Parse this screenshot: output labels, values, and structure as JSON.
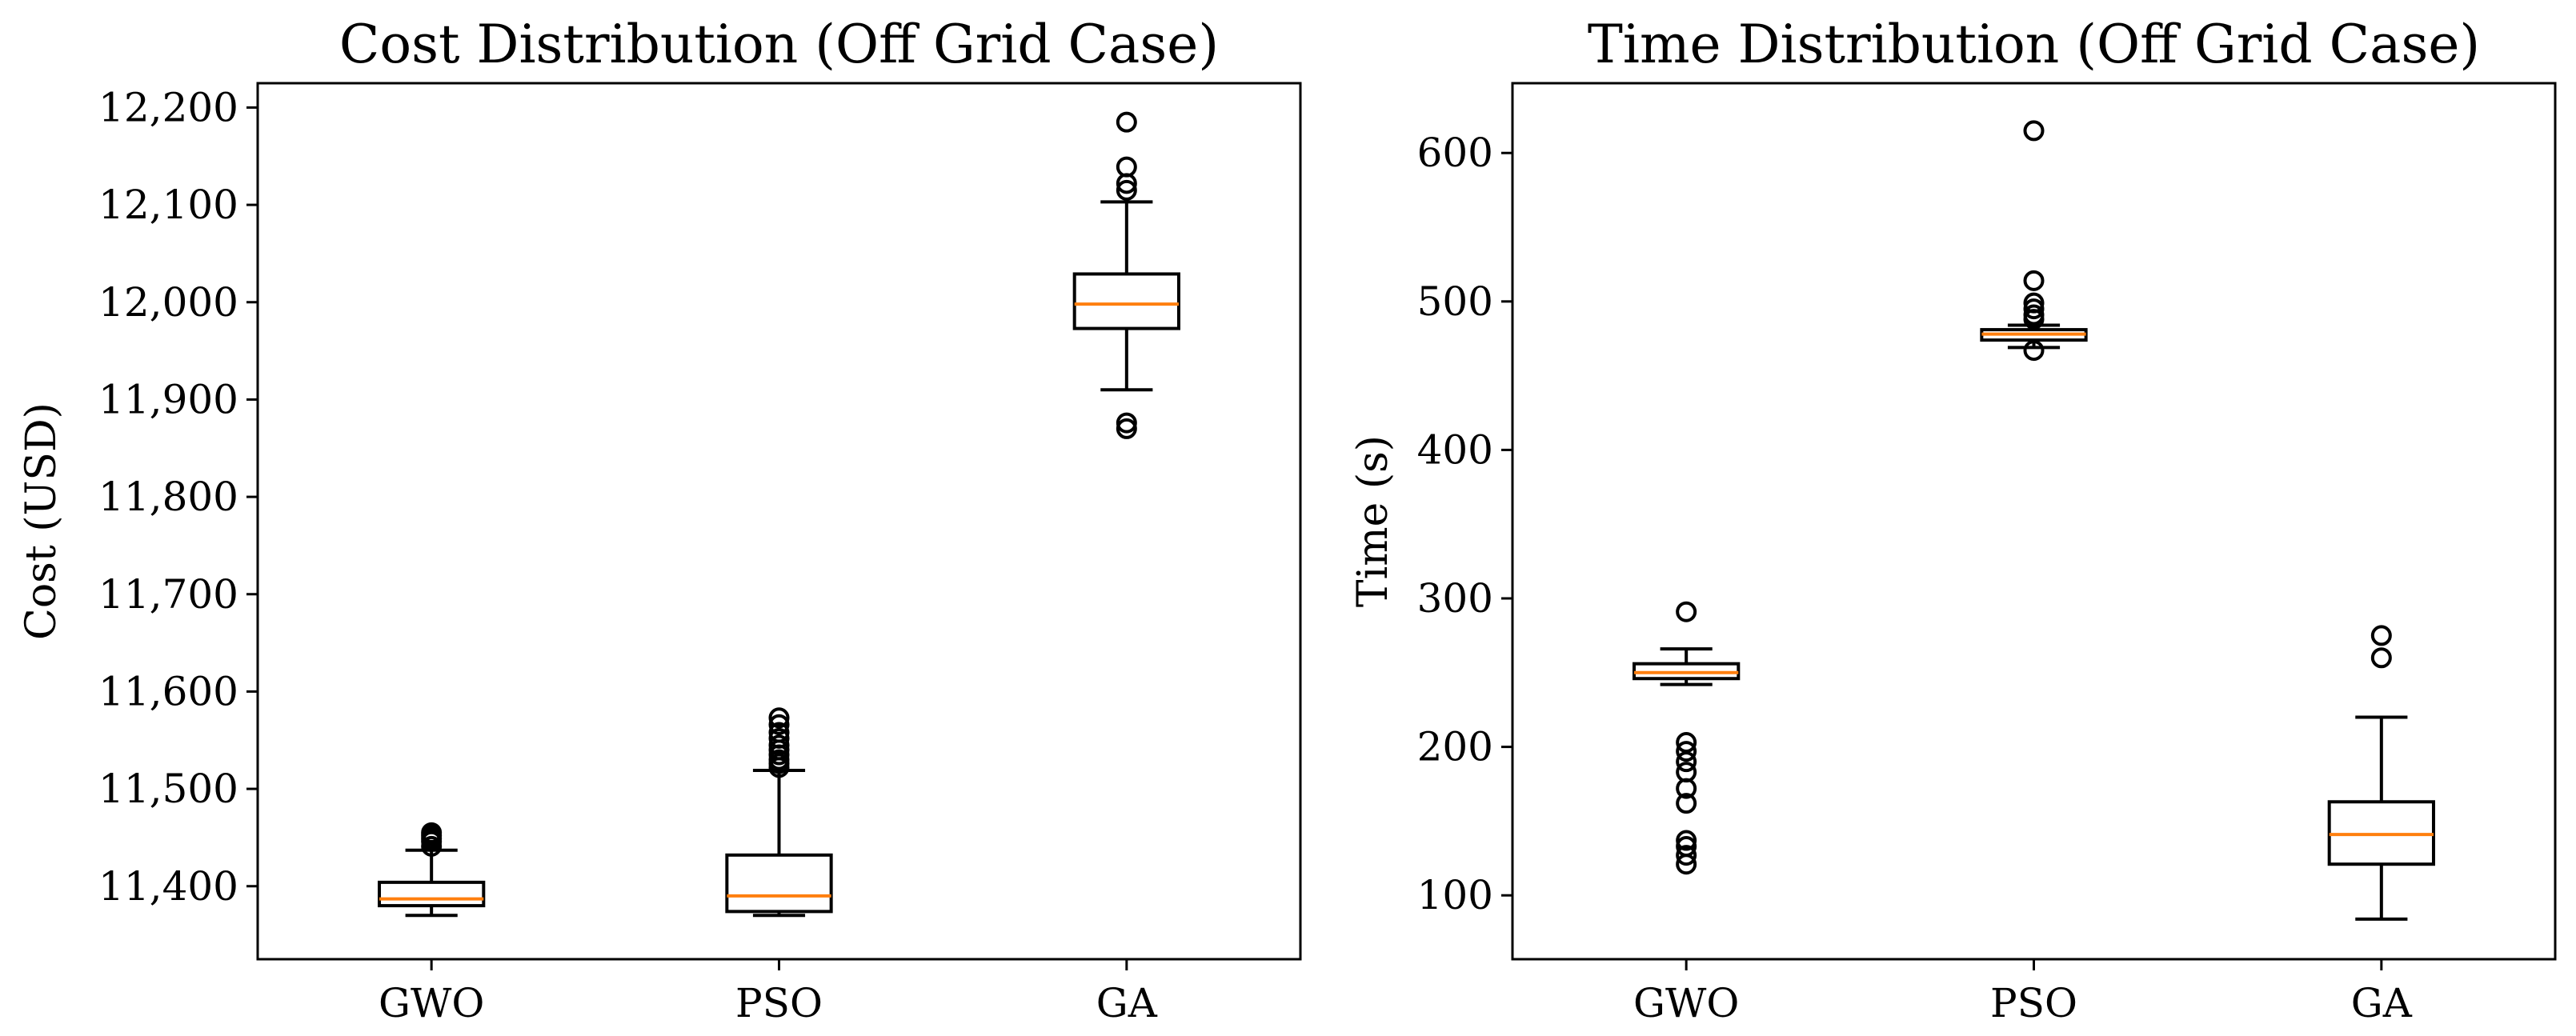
{
  "chart_data": [
    {
      "type": "boxplot",
      "title": "Cost Distribution (Off Grid Case)",
      "xlabel": "",
      "ylabel": "Cost (USD)",
      "ylim": [
        11325,
        12225
      ],
      "yticks": [
        11400,
        11500,
        11600,
        11700,
        11800,
        11900,
        12000,
        12100,
        12200
      ],
      "ytick_labels": [
        "11,400",
        "11,500",
        "11,600",
        "11,700",
        "11,800",
        "11,900",
        "12,000",
        "12,100",
        "12,200"
      ],
      "categories": [
        "GWO",
        "PSO",
        "GA"
      ],
      "boxes": [
        {
          "label": "GWO",
          "whisker_low": 11370,
          "q1": 11380,
          "median": 11387,
          "q3": 11404,
          "whisker_high": 11437,
          "outliers": [
            11441,
            11446,
            11449,
            11452,
            11455
          ]
        },
        {
          "label": "PSO",
          "whisker_low": 11370,
          "q1": 11374,
          "median": 11390,
          "q3": 11432,
          "whisker_high": 11519,
          "outliers": [
            11522,
            11526,
            11530,
            11535,
            11540,
            11545,
            11552,
            11558,
            11566,
            11573
          ]
        },
        {
          "label": "GA",
          "whisker_low": 11910,
          "q1": 11973,
          "median": 11998,
          "q3": 12029,
          "whisker_high": 12103,
          "outliers": [
            11870,
            11876,
            12115,
            12122,
            12139,
            12185
          ]
        }
      ],
      "grid": false
    },
    {
      "type": "boxplot",
      "title": "Time Distribution (Off Grid Case)",
      "xlabel": "",
      "ylabel": "Time (s)",
      "ylim": [
        57,
        647
      ],
      "yticks": [
        100,
        200,
        300,
        400,
        500,
        600
      ],
      "ytick_labels": [
        "100",
        "200",
        "300",
        "400",
        "500",
        "600"
      ],
      "categories": [
        "GWO",
        "PSO",
        "GA"
      ],
      "boxes": [
        {
          "label": "GWO",
          "whisker_low": 242,
          "q1": 246,
          "median": 250,
          "q3": 256,
          "whisker_high": 266,
          "outliers": [
            121,
            127,
            133,
            137,
            162,
            172,
            183,
            190,
            197,
            203,
            291
          ]
        },
        {
          "label": "PSO",
          "whisker_low": 469,
          "q1": 474,
          "median": 478,
          "q3": 481,
          "whisker_high": 484,
          "outliers": [
            467,
            488,
            491,
            495,
            499,
            514,
            615
          ]
        },
        {
          "label": "GA",
          "whisker_low": 84,
          "q1": 121,
          "median": 141,
          "q3": 163,
          "whisker_high": 220,
          "outliers": [
            260,
            275
          ]
        }
      ],
      "grid": false
    }
  ],
  "colors": {
    "box": "#000000",
    "median": "#ff7f0e",
    "background": "#ffffff"
  }
}
